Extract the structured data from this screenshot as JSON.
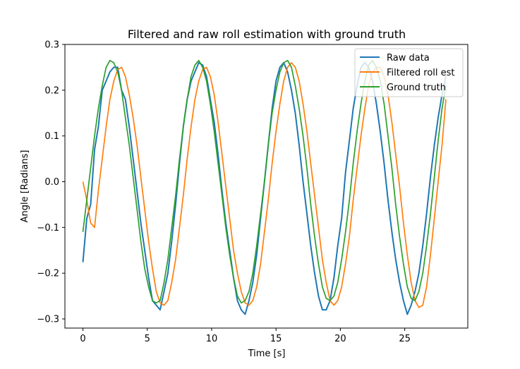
{
  "chart_data": {
    "type": "line",
    "title": "Filtered and raw roll estimation with ground truth",
    "xlabel": "Time [s]",
    "ylabel": "Angle [Radians]",
    "xlim": [
      -1.4,
      29.9
    ],
    "ylim": [
      -0.32,
      0.3
    ],
    "xticks": [
      0,
      5,
      10,
      15,
      20,
      25
    ],
    "yticks": [
      -0.3,
      -0.2,
      -0.1,
      0.0,
      0.1,
      0.2,
      0.3
    ],
    "ytick_labels": [
      "−0.3",
      "−0.2",
      "−0.1",
      "0.0",
      "0.1",
      "0.2",
      "0.3"
    ],
    "grid": false,
    "legend_position": "upper right",
    "series": [
      {
        "name": "Raw data",
        "color": "#1f77b4",
        "x": [
          0.0,
          0.3,
          0.6,
          0.9,
          1.2,
          1.5,
          1.8,
          2.1,
          2.4,
          2.7,
          3.0,
          3.3,
          3.6,
          3.9,
          4.2,
          4.5,
          4.8,
          5.1,
          5.4,
          5.7,
          6.0,
          6.3,
          6.6,
          6.9,
          7.2,
          7.5,
          7.8,
          8.1,
          8.4,
          8.7,
          9.0,
          9.3,
          9.6,
          9.9,
          10.2,
          10.5,
          10.8,
          11.1,
          11.4,
          11.7,
          12.0,
          12.3,
          12.6,
          12.9,
          13.2,
          13.5,
          13.8,
          14.1,
          14.4,
          14.7,
          15.0,
          15.3,
          15.6,
          15.9,
          16.2,
          16.5,
          16.8,
          17.1,
          17.4,
          17.7,
          18.0,
          18.3,
          18.6,
          18.9,
          19.2,
          19.5,
          19.8,
          20.1,
          20.4,
          20.7,
          21.0,
          21.3,
          21.6,
          21.9,
          22.2,
          22.5,
          22.8,
          23.1,
          23.4,
          23.7,
          24.0,
          24.3,
          24.6,
          24.9,
          25.2,
          25.5,
          25.8,
          26.1,
          26.4,
          26.7,
          27.0,
          27.3,
          27.6,
          27.9,
          28.2
        ],
        "y": [
          -0.176,
          -0.08,
          -0.05,
          0.07,
          0.12,
          0.2,
          0.22,
          0.24,
          0.25,
          0.25,
          0.2,
          0.18,
          0.12,
          0.05,
          -0.02,
          -0.09,
          -0.15,
          -0.21,
          -0.26,
          -0.27,
          -0.28,
          -0.24,
          -0.2,
          -0.13,
          -0.05,
          0.04,
          0.12,
          0.18,
          0.22,
          0.24,
          0.26,
          0.255,
          0.23,
          0.18,
          0.13,
          0.06,
          -0.02,
          -0.09,
          -0.15,
          -0.21,
          -0.26,
          -0.28,
          -0.29,
          -0.26,
          -0.22,
          -0.16,
          -0.08,
          0.0,
          0.08,
          0.16,
          0.22,
          0.25,
          0.26,
          0.24,
          0.2,
          0.15,
          0.08,
          0.0,
          -0.07,
          -0.14,
          -0.2,
          -0.25,
          -0.28,
          -0.28,
          -0.26,
          -0.21,
          -0.14,
          -0.08,
          0.02,
          0.09,
          0.16,
          0.21,
          0.25,
          0.26,
          0.25,
          0.22,
          0.17,
          0.11,
          0.04,
          -0.04,
          -0.11,
          -0.17,
          -0.22,
          -0.26,
          -0.29,
          -0.27,
          -0.24,
          -0.2,
          -0.14,
          -0.07,
          0.01,
          0.08,
          0.14,
          0.19,
          0.23
        ]
      },
      {
        "name": "Filtered roll est",
        "color": "#ff7f0e",
        "x": [
          0.0,
          0.3,
          0.6,
          0.9,
          1.2,
          1.5,
          1.8,
          2.1,
          2.4,
          2.7,
          3.0,
          3.3,
          3.6,
          3.9,
          4.2,
          4.5,
          4.8,
          5.1,
          5.4,
          5.7,
          6.0,
          6.3,
          6.6,
          6.9,
          7.2,
          7.5,
          7.8,
          8.1,
          8.4,
          8.7,
          9.0,
          9.3,
          9.6,
          9.9,
          10.2,
          10.5,
          10.8,
          11.1,
          11.4,
          11.7,
          12.0,
          12.3,
          12.6,
          12.9,
          13.2,
          13.5,
          13.8,
          14.1,
          14.4,
          14.7,
          15.0,
          15.3,
          15.6,
          15.9,
          16.2,
          16.5,
          16.8,
          17.1,
          17.4,
          17.7,
          18.0,
          18.3,
          18.6,
          18.9,
          19.2,
          19.5,
          19.8,
          20.1,
          20.4,
          20.7,
          21.0,
          21.3,
          21.6,
          21.9,
          22.2,
          22.5,
          22.8,
          23.1,
          23.4,
          23.7,
          24.0,
          24.3,
          24.6,
          24.9,
          25.2,
          25.5,
          25.8,
          26.1,
          26.4,
          26.7,
          27.0,
          27.3,
          27.6,
          27.9,
          28.2
        ],
        "y": [
          0.0,
          -0.04,
          -0.09,
          -0.1,
          -0.02,
          0.05,
          0.12,
          0.18,
          0.22,
          0.245,
          0.25,
          0.23,
          0.19,
          0.14,
          0.08,
          0.01,
          -0.06,
          -0.13,
          -0.19,
          -0.24,
          -0.265,
          -0.27,
          -0.26,
          -0.22,
          -0.17,
          -0.1,
          -0.03,
          0.05,
          0.12,
          0.18,
          0.22,
          0.245,
          0.25,
          0.23,
          0.19,
          0.13,
          0.06,
          -0.01,
          -0.08,
          -0.15,
          -0.2,
          -0.24,
          -0.265,
          -0.27,
          -0.26,
          -0.23,
          -0.18,
          -0.11,
          -0.04,
          0.04,
          0.11,
          0.17,
          0.22,
          0.25,
          0.26,
          0.25,
          0.22,
          0.17,
          0.11,
          0.04,
          -0.03,
          -0.1,
          -0.17,
          -0.22,
          -0.26,
          -0.27,
          -0.26,
          -0.23,
          -0.18,
          -0.12,
          -0.04,
          0.03,
          0.1,
          0.16,
          0.21,
          0.24,
          0.25,
          0.25,
          0.23,
          0.19,
          0.13,
          0.06,
          -0.01,
          -0.09,
          -0.16,
          -0.22,
          -0.26,
          -0.275,
          -0.27,
          -0.23,
          -0.16,
          -0.08,
          0.0,
          0.08,
          0.18
        ]
      },
      {
        "name": "Ground truth",
        "color": "#2ca02c",
        "x": [
          0.0,
          0.3,
          0.6,
          0.9,
          1.2,
          1.5,
          1.8,
          2.1,
          2.4,
          2.7,
          3.0,
          3.3,
          3.6,
          3.9,
          4.2,
          4.5,
          4.8,
          5.1,
          5.4,
          5.7,
          6.0,
          6.3,
          6.6,
          6.9,
          7.2,
          7.5,
          7.8,
          8.1,
          8.4,
          8.7,
          9.0,
          9.3,
          9.6,
          9.9,
          10.2,
          10.5,
          10.8,
          11.1,
          11.4,
          11.7,
          12.0,
          12.3,
          12.6,
          12.9,
          13.2,
          13.5,
          13.8,
          14.1,
          14.4,
          14.7,
          15.0,
          15.3,
          15.6,
          15.9,
          16.2,
          16.5,
          16.8,
          17.1,
          17.4,
          17.7,
          18.0,
          18.3,
          18.6,
          18.9,
          19.2,
          19.5,
          19.8,
          20.1,
          20.4,
          20.7,
          21.0,
          21.3,
          21.6,
          21.9,
          22.2,
          22.5,
          22.8,
          23.1,
          23.4,
          23.7,
          24.0,
          24.3,
          24.6,
          24.9,
          25.2,
          25.5,
          25.8,
          26.1,
          26.4,
          26.7,
          27.0,
          27.3,
          27.6,
          27.9,
          28.2
        ],
        "y": [
          -0.11,
          -0.04,
          0.03,
          0.1,
          0.16,
          0.21,
          0.25,
          0.265,
          0.26,
          0.24,
          0.2,
          0.14,
          0.08,
          0.01,
          -0.06,
          -0.13,
          -0.19,
          -0.23,
          -0.26,
          -0.265,
          -0.26,
          -0.22,
          -0.17,
          -0.1,
          -0.03,
          0.05,
          0.12,
          0.18,
          0.23,
          0.255,
          0.265,
          0.25,
          0.22,
          0.17,
          0.11,
          0.04,
          -0.03,
          -0.1,
          -0.16,
          -0.21,
          -0.25,
          -0.265,
          -0.26,
          -0.24,
          -0.2,
          -0.14,
          -0.07,
          0.0,
          0.08,
          0.15,
          0.2,
          0.24,
          0.26,
          0.265,
          0.25,
          0.21,
          0.16,
          0.1,
          0.03,
          -0.05,
          -0.12,
          -0.18,
          -0.23,
          -0.255,
          -0.26,
          -0.25,
          -0.22,
          -0.17,
          -0.11,
          -0.04,
          0.04,
          0.11,
          0.17,
          0.22,
          0.255,
          0.265,
          0.25,
          0.22,
          0.17,
          0.1,
          0.03,
          -0.05,
          -0.12,
          -0.18,
          -0.23,
          -0.255,
          -0.26,
          -0.24,
          -0.2,
          -0.14,
          -0.07,
          0.01,
          0.09,
          0.16,
          0.21
        ]
      }
    ]
  }
}
